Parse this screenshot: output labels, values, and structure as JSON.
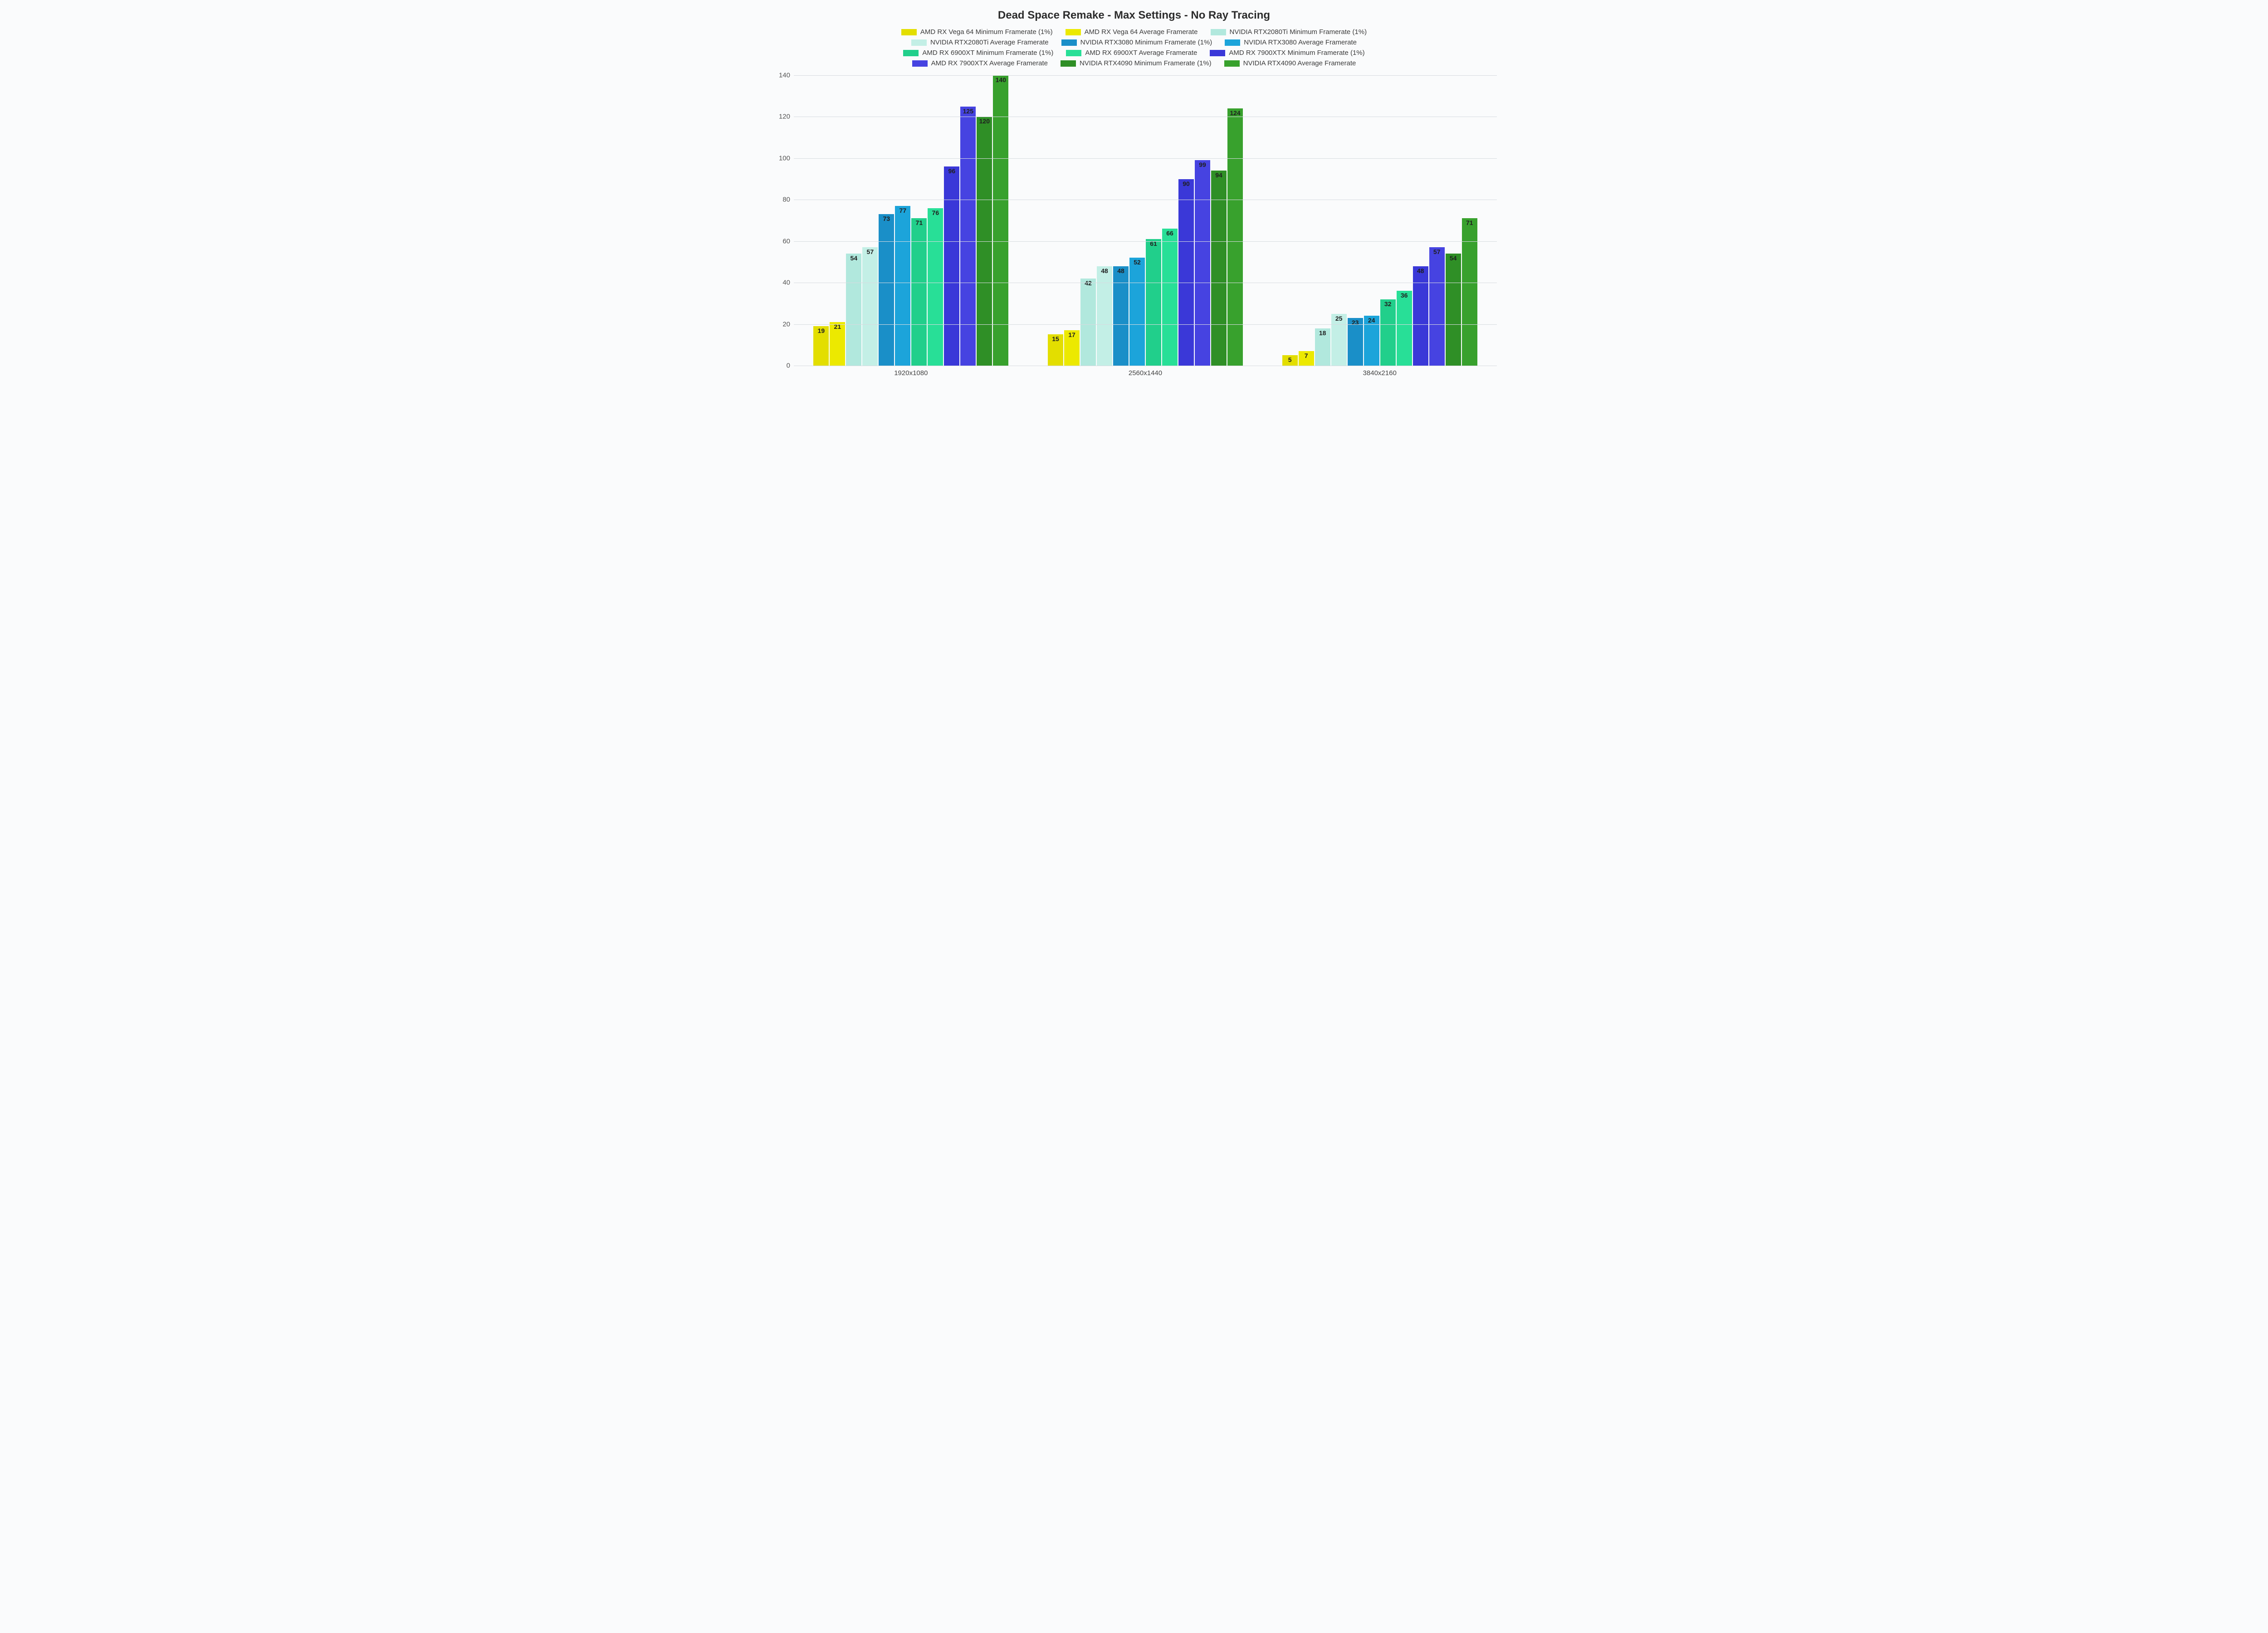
{
  "chart": {
    "type": "bar",
    "title": "Dead Space Remake - Max Settings - No Ray Tracing",
    "title_fontsize": 24,
    "axis_fontsize": 15,
    "legend_fontsize": 15,
    "barlabel_fontsize": 14,
    "background_color": "#fafbfc",
    "grid_color": "#d7dbe0",
    "text_color": "#2c2c2c",
    "ylim": [
      0,
      140
    ],
    "ytick_step": 20,
    "categories": [
      "1920x1080",
      "2560x1440",
      "3840x2160"
    ],
    "series": [
      {
        "label": "AMD RX Vega 64 Minimum Framerate (1%)",
        "color": "#e3de00",
        "values": [
          19,
          15,
          5
        ]
      },
      {
        "label": "AMD RX Vega 64 Average Framerate",
        "color": "#ece900",
        "values": [
          21,
          17,
          7
        ]
      },
      {
        "label": "NVIDIA RTX2080Ti Minimum Framerate (1%)",
        "color": "#b1e8dd",
        "values": [
          54,
          42,
          18
        ]
      },
      {
        "label": "NVIDIA RTX2080Ti Average Framerate",
        "color": "#c3efe6",
        "values": [
          57,
          48,
          25
        ]
      },
      {
        "label": "NVIDIA RTX3080 Minimum Framerate (1%)",
        "color": "#1a8fc8",
        "values": [
          73,
          48,
          23
        ]
      },
      {
        "label": "NVIDIA RTX3080 Average Framerate",
        "color": "#1ca4da",
        "values": [
          77,
          52,
          24
        ]
      },
      {
        "label": "AMD RX 6900XT Minimum Framerate (1%)",
        "color": "#21cf8b",
        "values": [
          71,
          61,
          32
        ]
      },
      {
        "label": "AMD RX 6900XT Average Framerate",
        "color": "#28df97",
        "values": [
          76,
          66,
          36
        ]
      },
      {
        "label": "AMD RX 7900XTX Minimum Framerate (1%)",
        "color": "#3a38d8",
        "values": [
          96,
          90,
          48
        ]
      },
      {
        "label": "AMD RX 7900XTX Average Framerate",
        "color": "#4643e1",
        "values": [
          125,
          99,
          57
        ]
      },
      {
        "label": "NVIDIA RTX4090 Minimum Framerate (1%)",
        "color": "#2f8f26",
        "values": [
          120,
          94,
          54
        ]
      },
      {
        "label": "NVIDIA RTX4090 Average Framerate",
        "color": "#38a12d",
        "values": [
          140,
          124,
          71
        ]
      }
    ]
  }
}
